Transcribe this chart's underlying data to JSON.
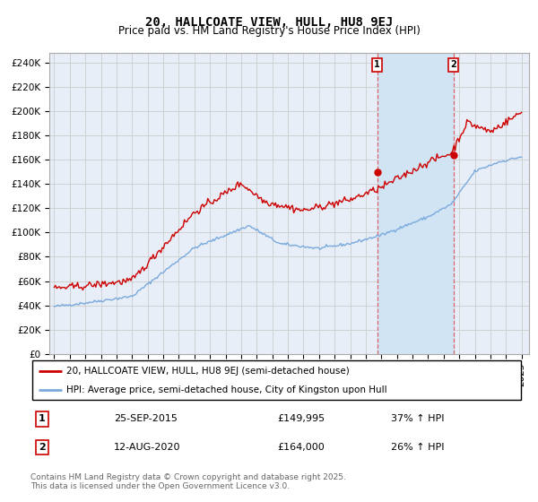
{
  "title": "20, HALLCOATE VIEW, HULL, HU8 9EJ",
  "subtitle": "Price paid vs. HM Land Registry's House Price Index (HPI)",
  "yticks": [
    0,
    20000,
    40000,
    60000,
    80000,
    100000,
    120000,
    140000,
    160000,
    180000,
    200000,
    220000,
    240000
  ],
  "ytick_labels": [
    "£0",
    "£20K",
    "£40K",
    "£60K",
    "£80K",
    "£100K",
    "£120K",
    "£140K",
    "£160K",
    "£180K",
    "£200K",
    "£220K",
    "£240K"
  ],
  "ylim": [
    0,
    248000
  ],
  "xlim_start": 1994.7,
  "xlim_end": 2025.5,
  "red_line_color": "#cc0000",
  "blue_line_color": "#7aaadd",
  "vline_color": "#dd4444",
  "grid_color": "#cccccc",
  "background_color": "#ffffff",
  "plot_bg_color": "#e8eef8",
  "span_color": "#d0e4f4",
  "legend_label_red": "20, HALLCOATE VIEW, HULL, HU8 9EJ (semi-detached house)",
  "legend_label_blue": "HPI: Average price, semi-detached house, City of Kingston upon Hull",
  "transaction1_date": 2015.73,
  "transaction1_price": 149995,
  "transaction1_label": "1",
  "transaction1_text": "25-SEP-2015",
  "transaction1_hpi": "37% ↑ HPI",
  "transaction2_date": 2020.62,
  "transaction2_price": 164000,
  "transaction2_label": "2",
  "transaction2_text": "12-AUG-2020",
  "transaction2_hpi": "26% ↑ HPI",
  "footnote": "Contains HM Land Registry data © Crown copyright and database right 2025.\nThis data is licensed under the Open Government Licence v3.0.",
  "title_fontsize": 10,
  "subtitle_fontsize": 8.5,
  "tick_fontsize": 7.5,
  "legend_fontsize": 7.5,
  "footnote_fontsize": 6.5
}
